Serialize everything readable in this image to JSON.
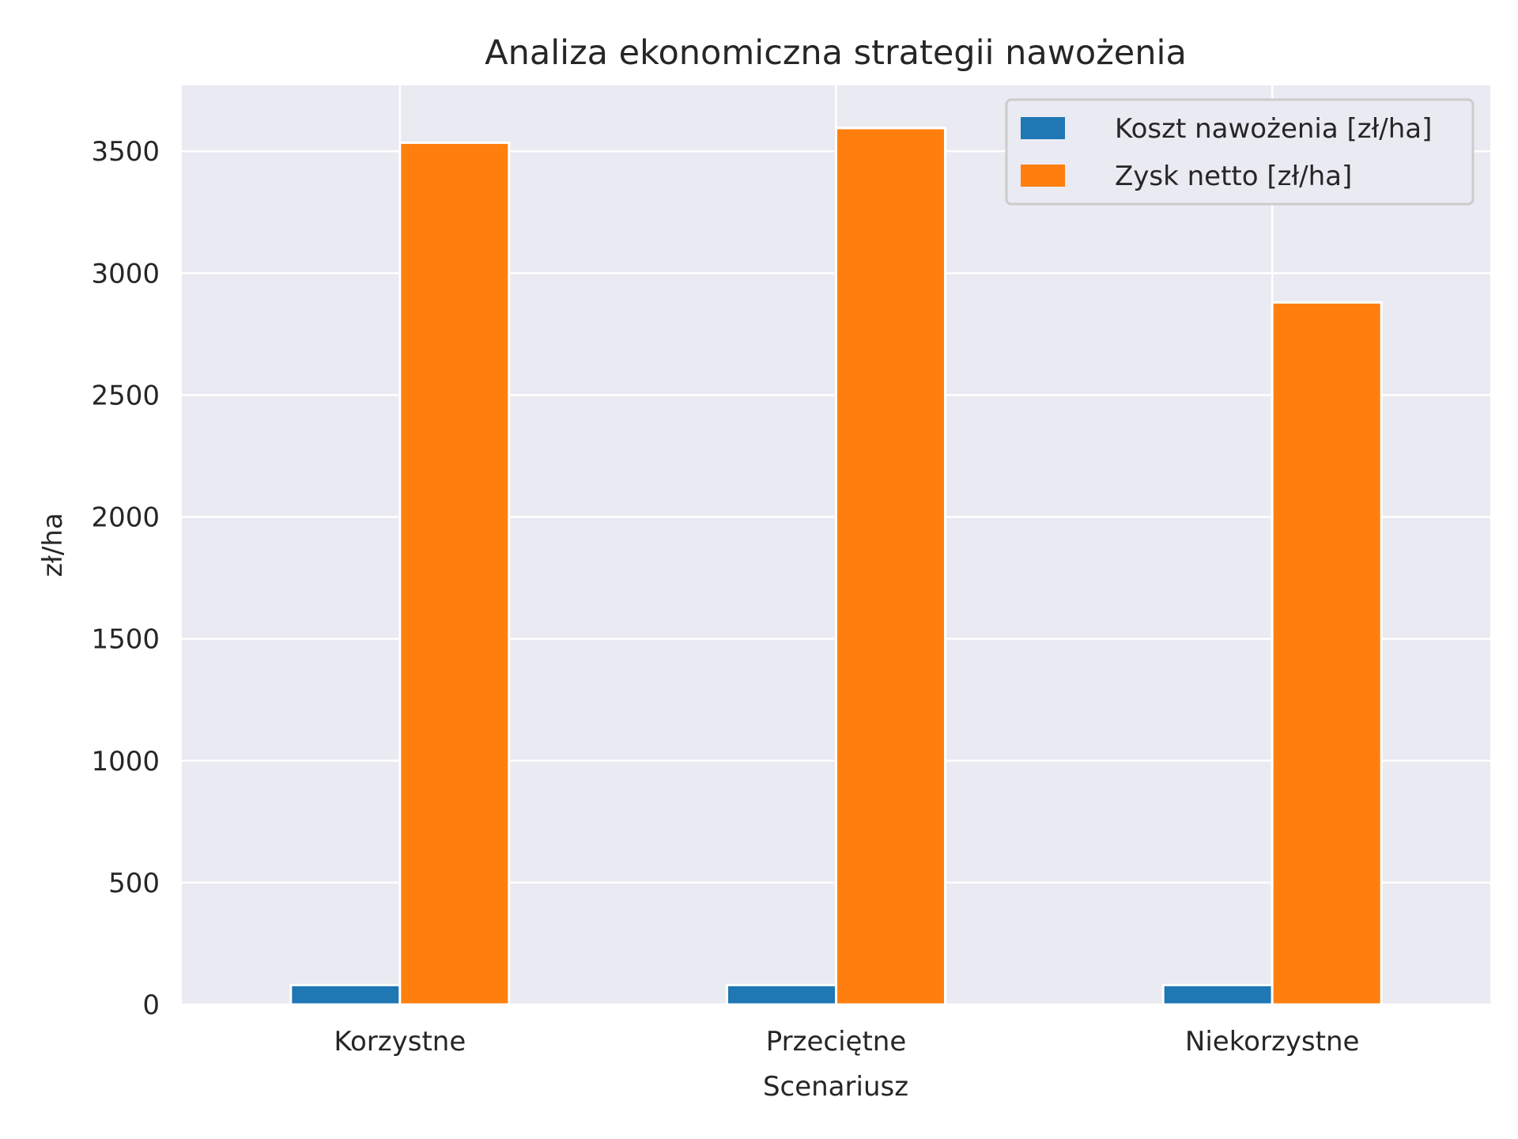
{
  "chart_data": {
    "type": "bar",
    "title": "Analiza ekonomiczna strategii nawożenia",
    "xlabel": "Scenariusz",
    "ylabel": "zł/ha",
    "categories": [
      "Korzystne",
      "Przeciętne",
      "Niekorzystne"
    ],
    "series": [
      {
        "name": "Koszt nawożenia [zł/ha]",
        "values": [
          80,
          80,
          80
        ],
        "color": "#1f77b4"
      },
      {
        "name": "Zysk netto [zł/ha]",
        "values": [
          3535,
          3595,
          2880
        ],
        "color": "#ff7f0e"
      }
    ],
    "ylim": [
      0,
      3770
    ],
    "yticks": [
      0,
      500,
      1000,
      1500,
      2000,
      2500,
      3000,
      3500
    ],
    "grid": true,
    "legend": "top-right",
    "background": "#eaeaf2"
  }
}
